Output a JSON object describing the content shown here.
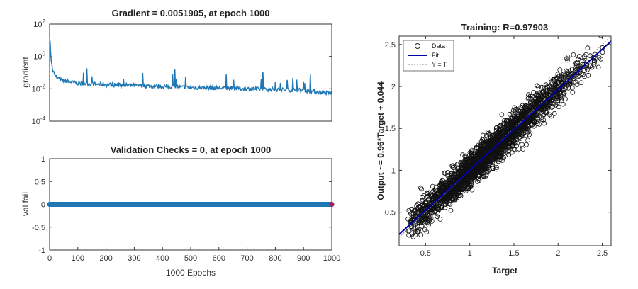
{
  "chart_data": [
    {
      "type": "line",
      "title": "Gradient = 0.0051905, at epoch 1000",
      "xlabel": "",
      "ylabel": "gradient",
      "yscale": "log",
      "xlim": [
        0,
        1000
      ],
      "ylim": [
        0.0001,
        100
      ],
      "y_ticks": [
        {
          "base": "10",
          "exp": "2"
        },
        {
          "base": "10",
          "exp": "0"
        },
        {
          "base": "10",
          "exp": "-2"
        },
        {
          "base": "10",
          "exp": "-4"
        }
      ],
      "series": [
        {
          "color": "#1f77b4",
          "x": [
            0,
            5,
            10,
            20,
            40,
            60,
            80,
            100,
            150,
            200,
            300,
            400,
            500,
            600,
            700,
            800,
            900,
            1000
          ],
          "y": [
            20,
            0.8,
            0.15,
            0.06,
            0.035,
            0.03,
            0.025,
            0.022,
            0.02,
            0.018,
            0.016,
            0.014,
            0.012,
            0.011,
            0.01,
            0.009,
            0.008,
            0.0052
          ]
        }
      ],
      "grid": false
    },
    {
      "type": "scatter",
      "title": "Validation Checks = 0, at epoch 1000",
      "xlabel": "1000 Epochs",
      "ylabel": "val fail",
      "xlim": [
        0,
        1000
      ],
      "ylim": [
        -1,
        1
      ],
      "x_ticks": [
        0,
        100,
        200,
        300,
        400,
        500,
        600,
        700,
        800,
        900,
        1000
      ],
      "y_ticks": [
        1,
        0.5,
        0,
        -0.5,
        -1
      ],
      "series": [
        {
          "color": "#1f77b4",
          "x_range": [
            0,
            1000
          ],
          "y": 0
        }
      ],
      "grid": false
    },
    {
      "type": "scatter",
      "title": "Training: R=0.97903",
      "xlabel": "Target",
      "ylabel": "Output ~= 0.96*Target + 0.044",
      "xlim": [
        0.2,
        2.6
      ],
      "ylim": [
        0.1,
        2.6
      ],
      "x_ticks": [
        0.5,
        1,
        1.5,
        2,
        2.5
      ],
      "y_ticks": [
        0.5,
        1,
        1.5,
        2,
        2.5
      ],
      "fit": {
        "slope": 0.96,
        "intercept": 0.044,
        "color": "#0000aa"
      },
      "legend": {
        "position": "top-left",
        "entries": [
          "Data",
          "Fit",
          "Y = T"
        ]
      },
      "grid": false
    }
  ]
}
